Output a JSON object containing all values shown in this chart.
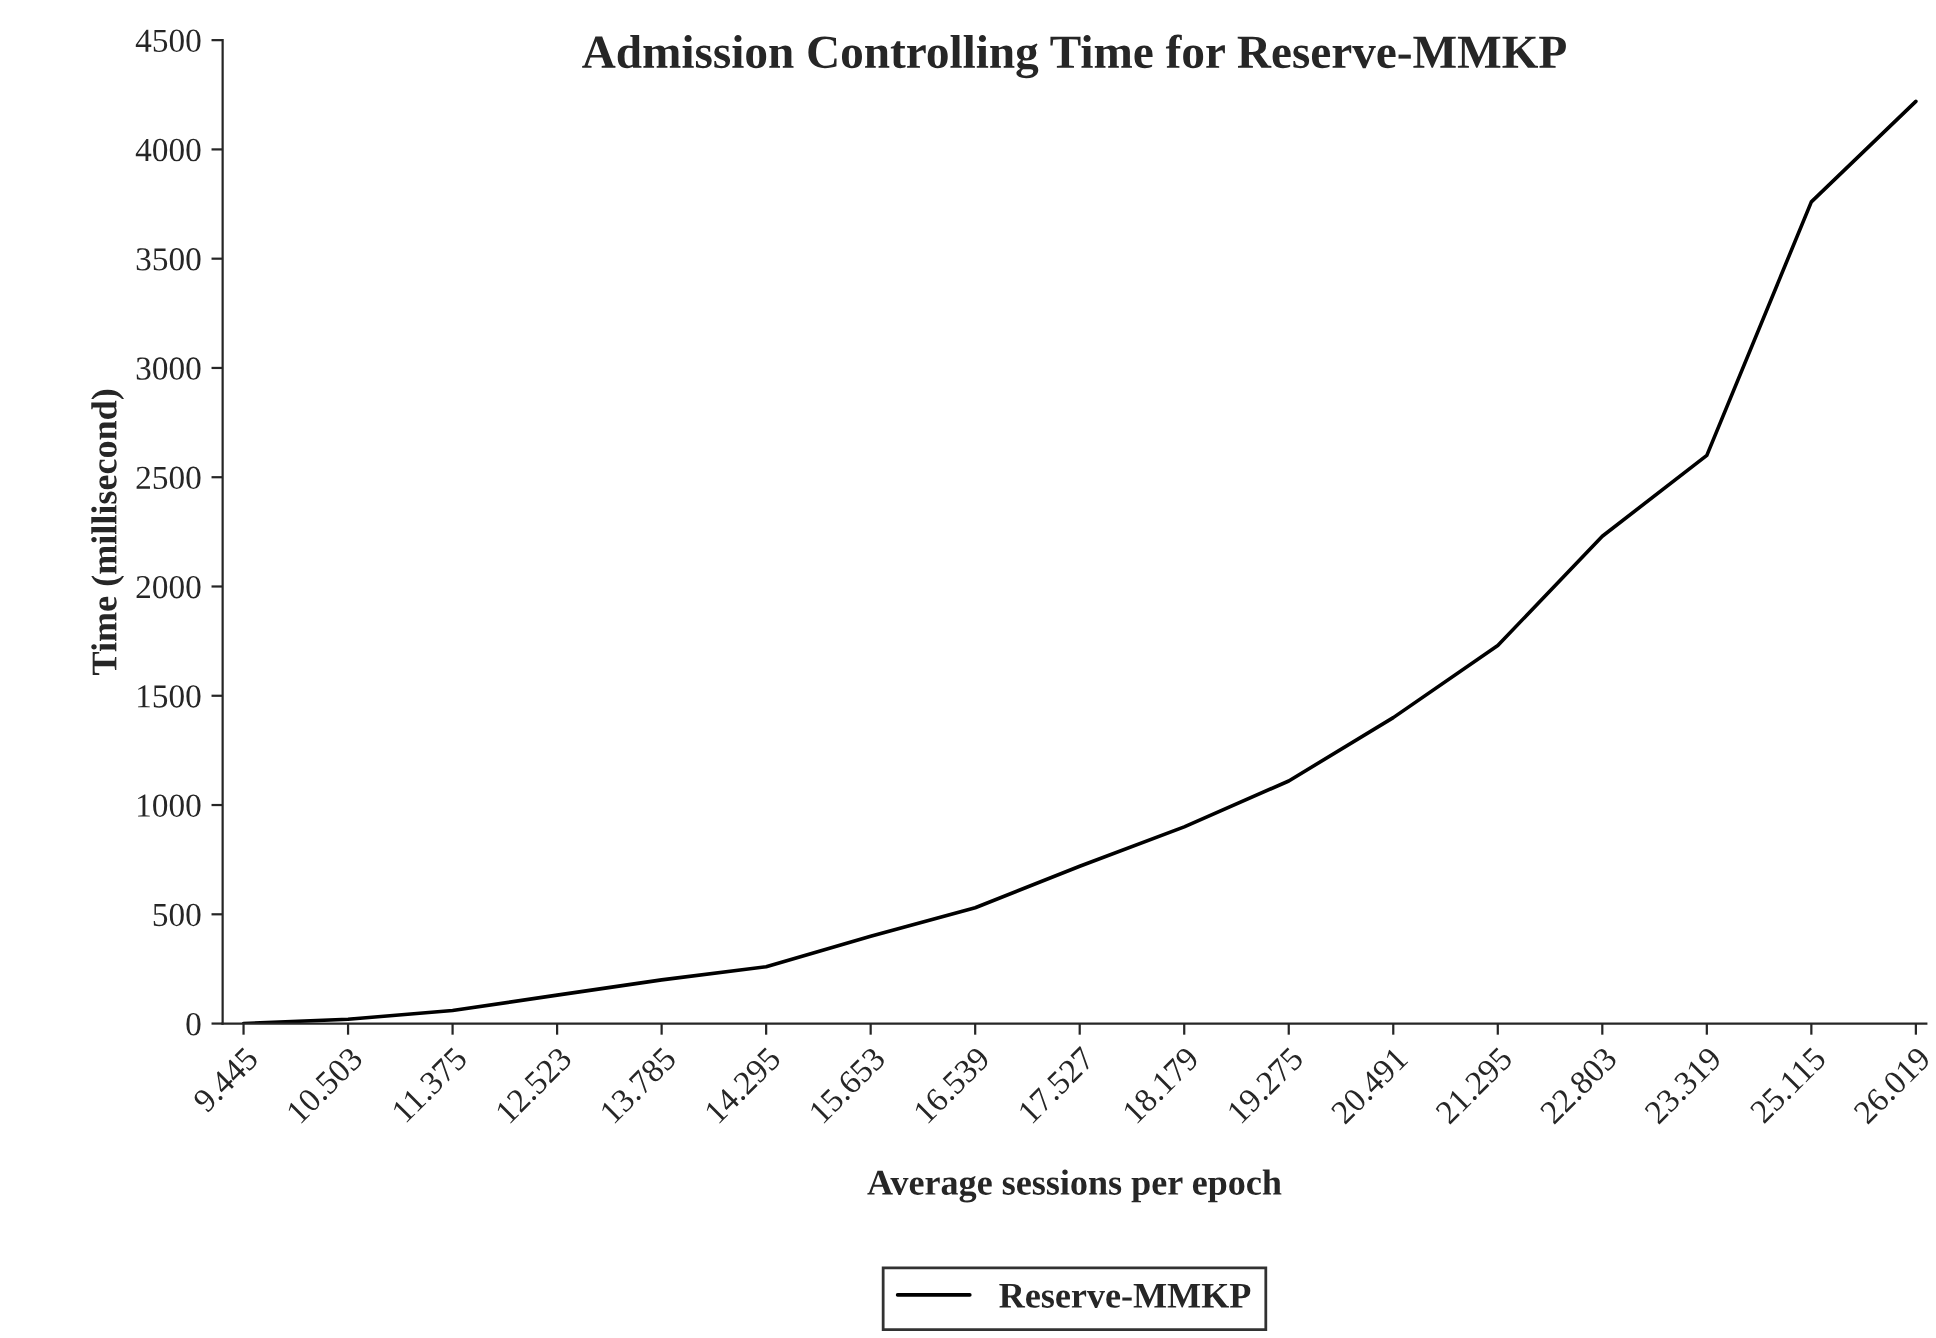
{
  "chart_data": {
    "type": "line",
    "title": "Admission Controlling Time for Reserve-MMKP",
    "xlabel": "Average sessions per epoch",
    "ylabel": "Time (millisecond)",
    "categories": [
      "9.445",
      "10.503",
      "11.375",
      "12.523",
      "13.785",
      "14.295",
      "15.653",
      "16.539",
      "17.527",
      "18.179",
      "19.275",
      "20.491",
      "21.295",
      "22.803",
      "23.319",
      "25.115",
      "26.019"
    ],
    "series": [
      {
        "name": "Reserve-MMKP",
        "color": "#000000",
        "values": [
          0,
          20,
          60,
          130,
          200,
          260,
          400,
          530,
          720,
          900,
          1110,
          1400,
          1730,
          2230,
          2600,
          3760,
          4220
        ]
      }
    ],
    "ylim": [
      0,
      4500
    ],
    "yticks": [
      0,
      500,
      1000,
      1500,
      2000,
      2500,
      3000,
      3500,
      4000,
      4500
    ],
    "grid": false,
    "legend": "bottom",
    "marker": "none",
    "line_style": "solid"
  }
}
